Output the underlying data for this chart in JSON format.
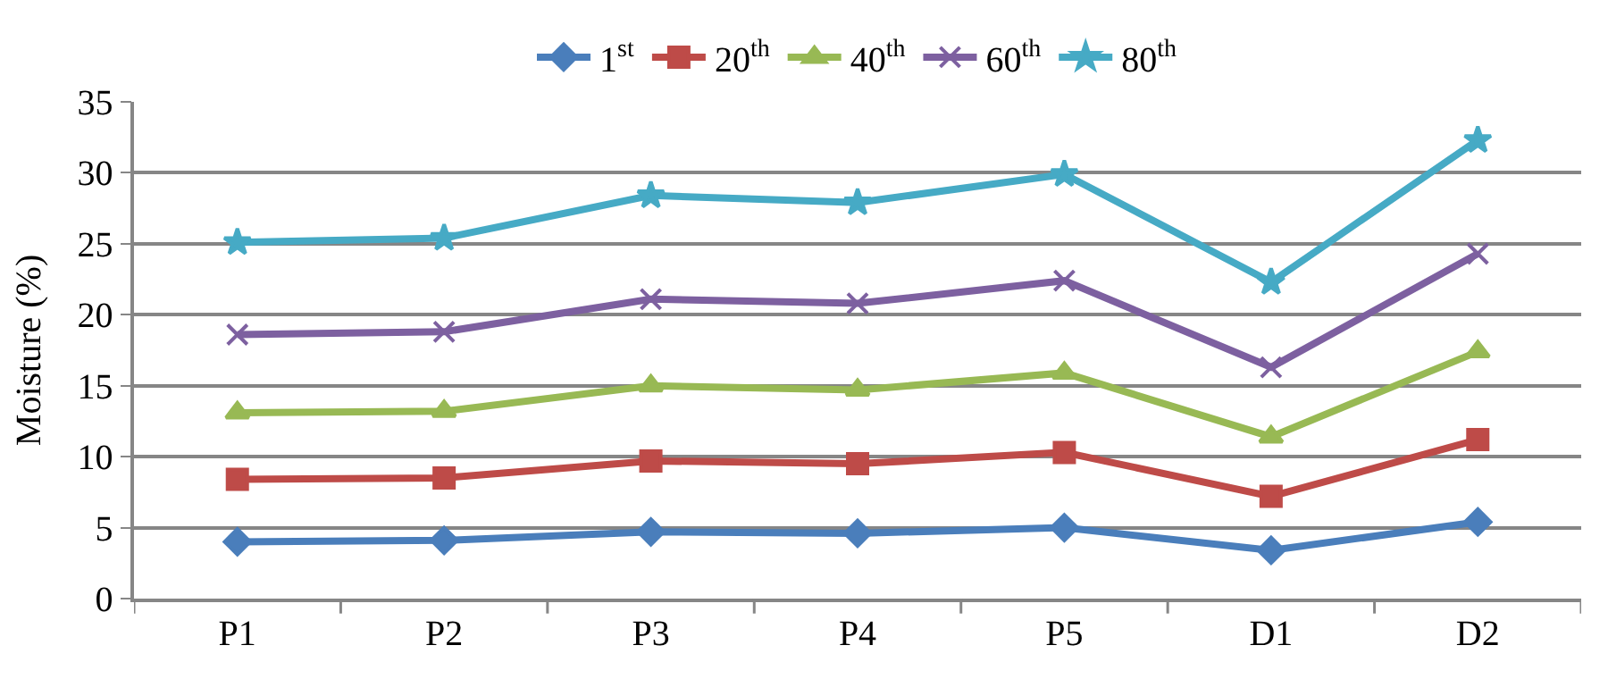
{
  "chart_data": {
    "type": "line",
    "ylabel": "Moisture (%)",
    "categories": [
      "P1",
      "P2",
      "P3",
      "P4",
      "P5",
      "D1",
      "D2"
    ],
    "ylim": [
      0,
      35
    ],
    "yticks": [
      0,
      5,
      10,
      15,
      20,
      25,
      30,
      35
    ],
    "grid": "y",
    "legend": "top",
    "line_style": "solid",
    "series": [
      {
        "name": "1$^{st}$",
        "color": "#4a7ebb",
        "marker": "diamond",
        "values": [
          4.0,
          4.1,
          4.7,
          4.6,
          5.0,
          3.4,
          5.4
        ]
      },
      {
        "name": "20$^{th}$",
        "color": "#be4b48",
        "marker": "square",
        "values": [
          8.4,
          8.5,
          9.7,
          9.5,
          10.3,
          7.2,
          11.2
        ]
      },
      {
        "name": "40$^{th}$",
        "color": "#98b954",
        "marker": "triangle",
        "values": [
          13.1,
          13.2,
          15.0,
          14.7,
          15.9,
          11.4,
          17.4
        ]
      },
      {
        "name": "60$^{th}$",
        "color": "#7d60a0",
        "marker": "cross",
        "values": [
          18.6,
          18.8,
          21.1,
          20.8,
          22.4,
          16.3,
          24.3
        ]
      },
      {
        "name": "80$^{th}$",
        "color": "#46aac5",
        "marker": "star",
        "values": [
          25.1,
          25.4,
          28.4,
          27.9,
          29.9,
          22.3,
          32.3
        ]
      }
    ]
  }
}
